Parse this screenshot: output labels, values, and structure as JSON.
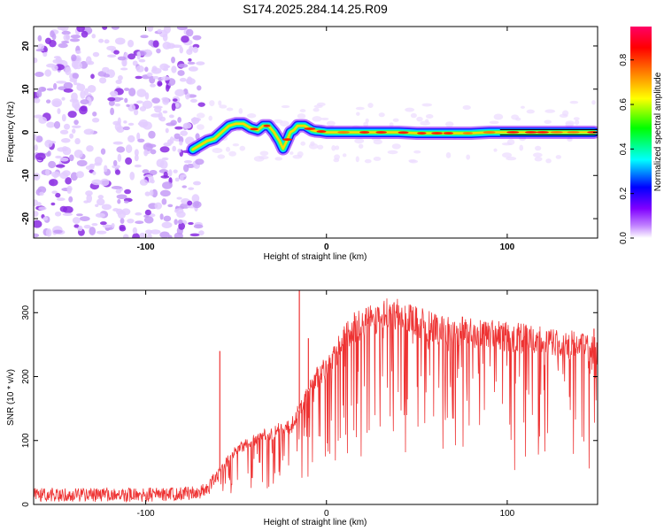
{
  "title": "S174.2025.284.14.25.R09",
  "chart_data": [
    {
      "type": "heatmap",
      "name": "spectrogram",
      "xlabel": "Height of straight line (km)",
      "ylabel": "Frequency (Hz)",
      "xlim": [
        -162,
        150
      ],
      "ylim": [
        -24.5,
        24.5
      ],
      "x_ticks": [
        -100,
        0,
        100
      ],
      "x_tick_labels": [
        "-100",
        "0",
        "100"
      ],
      "y_ticks": [
        -20,
        -10,
        0,
        10,
        20
      ],
      "y_tick_labels": [
        "-20",
        "-10",
        "0",
        "10",
        "20"
      ],
      "noise_region_x": [
        -162,
        -72
      ],
      "signal_trace": {
        "x": [
          -74,
          -70,
          -66,
          -62,
          -58,
          -54,
          -50,
          -46,
          -42,
          -38,
          -35,
          -32,
          -29,
          -26,
          -24,
          -22,
          -20,
          -18,
          -16,
          -14,
          -12,
          -10,
          -8,
          -6,
          -3,
          0,
          10,
          20,
          30,
          40,
          50,
          60,
          70,
          80,
          90,
          100,
          110,
          120,
          130,
          140,
          148
        ],
        "y": [
          -4.0,
          -3.0,
          -2.0,
          -1.5,
          0.0,
          1.5,
          2.0,
          2.0,
          1.0,
          0.5,
          1.5,
          1.5,
          0.0,
          -2.0,
          -3.8,
          -2.0,
          0.0,
          0.5,
          1.5,
          1.5,
          1.5,
          1.0,
          0.5,
          0.3,
          0.2,
          0.0,
          0.0,
          0.0,
          0.0,
          0.0,
          -0.2,
          -0.2,
          -0.2,
          -0.2,
          0.0,
          0.0,
          0.0,
          0.0,
          0.0,
          0.0,
          0.0
        ]
      },
      "colorbar": {
        "label": "Normalized spectral amplitude",
        "range": [
          0,
          0.95
        ],
        "ticks": [
          0,
          0.2,
          0.4,
          0.6,
          0.8
        ],
        "tick_labels": [
          "0.0",
          "0.2",
          "0.4",
          "0.6",
          "0.8"
        ],
        "colormap": [
          "#ffffff",
          "#8000ff",
          "#0000ff",
          "#00ffff",
          "#00ff00",
          "#ffff00",
          "#ff8000",
          "#ff0000",
          "#ff00a0"
        ]
      }
    },
    {
      "type": "line",
      "name": "snr",
      "xlabel": "Height of straight line (km)",
      "ylabel": "SNR (10 * v/v)",
      "xlim": [
        -162,
        150
      ],
      "ylim": [
        0,
        335
      ],
      "x_ticks": [
        -100,
        0,
        100
      ],
      "x_tick_labels": [
        "-100",
        "0",
        "100"
      ],
      "y_ticks": [
        0,
        100,
        200,
        300
      ],
      "y_tick_labels": [
        "0",
        "100",
        "200",
        "300"
      ],
      "color": "#ee3333",
      "series": [
        {
          "name": "SNR envelope",
          "x": [
            -162,
            -140,
            -120,
            -100,
            -80,
            -70,
            -65,
            -60,
            -55,
            -50,
            -45,
            -40,
            -35,
            -30,
            -25,
            -20,
            -15,
            -10,
            -5,
            0,
            5,
            10,
            15,
            20,
            25,
            30,
            35,
            40,
            45,
            50,
            60,
            70,
            80,
            90,
            100,
            110,
            120,
            130,
            140,
            150
          ],
          "y": [
            15,
            15,
            15,
            15,
            17,
            20,
            25,
            50,
            70,
            85,
            95,
            100,
            110,
            110,
            120,
            120,
            150,
            180,
            200,
            215,
            235,
            260,
            275,
            285,
            290,
            295,
            300,
            298,
            292,
            285,
            275,
            272,
            268,
            265,
            262,
            260,
            255,
            252,
            248,
            240
          ]
        }
      ],
      "spikes": [
        {
          "x": -59,
          "y": 240
        },
        {
          "x": -15,
          "y": 335
        },
        {
          "x": -10,
          "y": 260
        },
        {
          "x": 148,
          "y": 275
        }
      ]
    }
  ]
}
